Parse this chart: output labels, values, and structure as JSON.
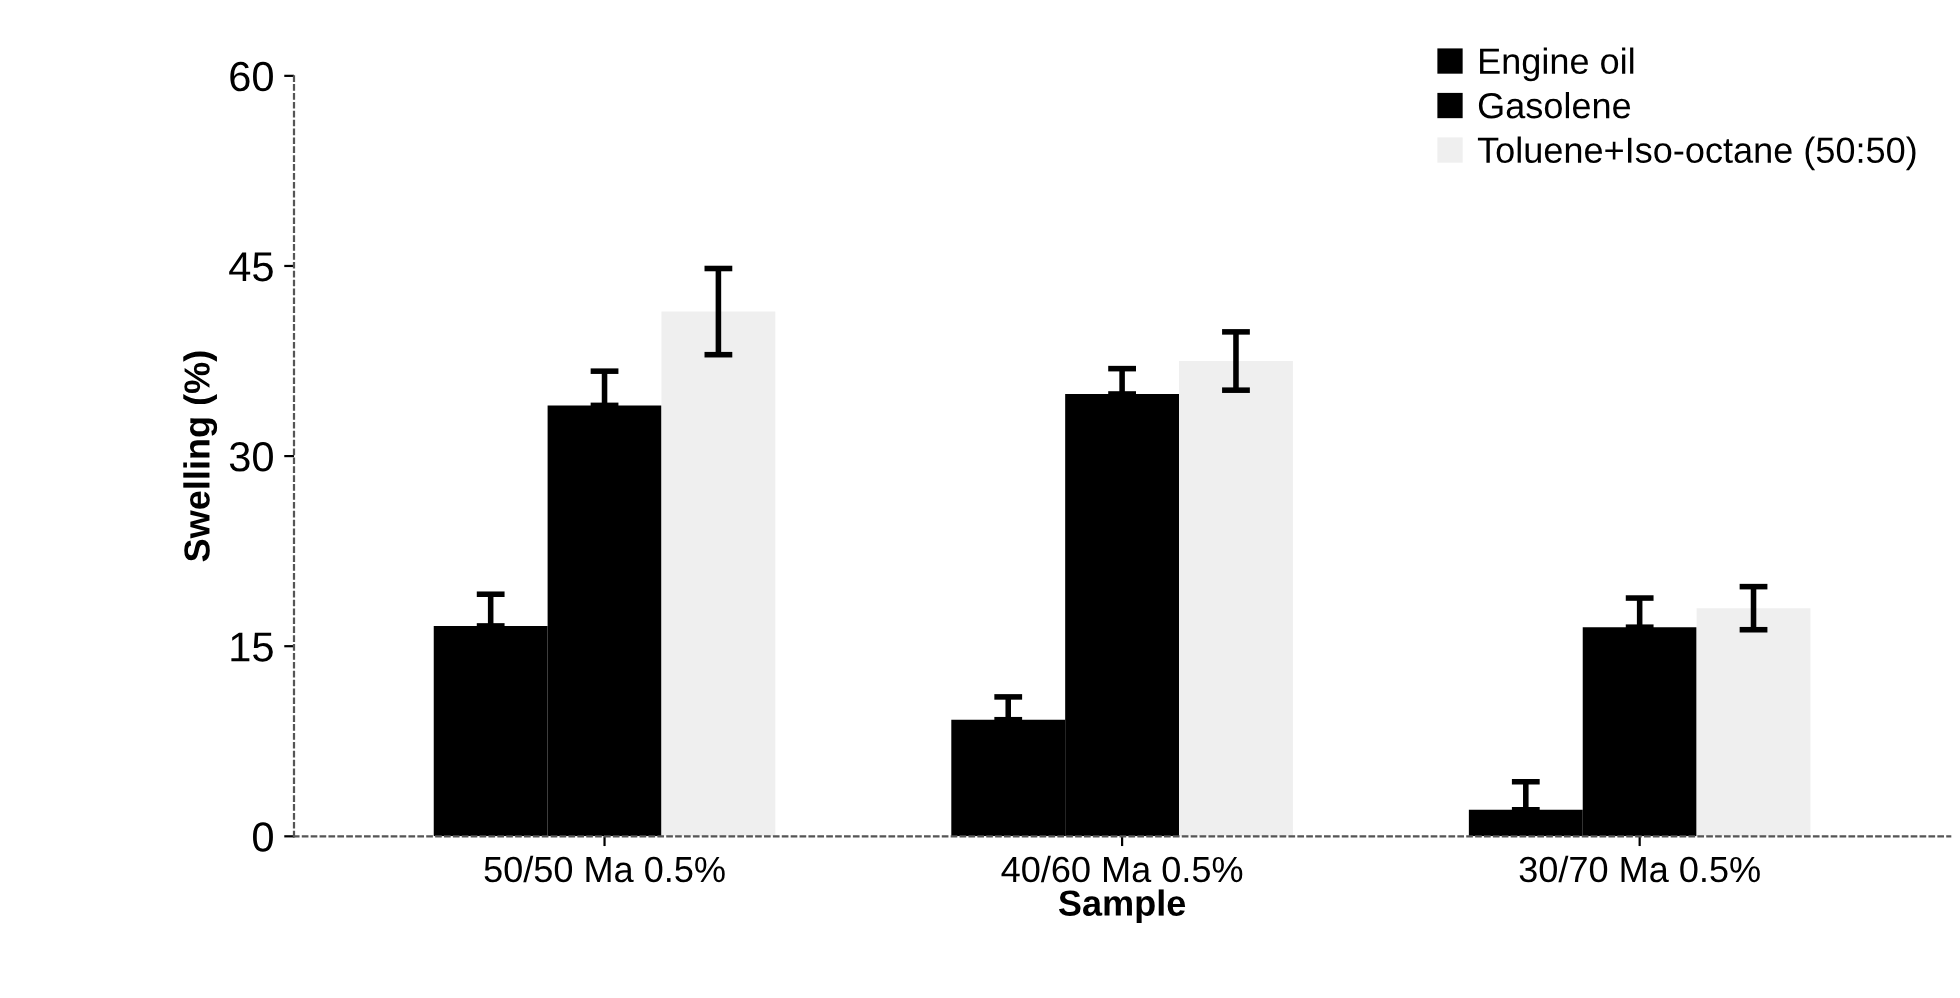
{
  "chart_data": {
    "type": "bar",
    "xlabel": "Sample",
    "ylabel": "Swelling (%)",
    "categories": [
      "50/50 Ma 0.5%",
      "40/60 Ma 0.5%",
      "30/70 Ma 0.5%"
    ],
    "series": [
      {
        "name": "Engine oil",
        "color": "#000000",
        "values": [
          16.6,
          9.2,
          2.1
        ],
        "errors": [
          [
            16.6,
            19.1
          ],
          [
            9.2,
            11.0
          ],
          [
            2.1,
            4.3
          ]
        ]
      },
      {
        "name": "Gasolene",
        "color": "#000000",
        "values": [
          34.0,
          34.9,
          16.5
        ],
        "errors": [
          [
            34.0,
            36.7
          ],
          [
            34.9,
            36.9
          ],
          [
            16.5,
            18.8
          ]
        ]
      },
      {
        "name": "Toluene+Iso-octane (50:50)",
        "color": "#efefef",
        "values": [
          41.4,
          37.5,
          18.0
        ],
        "errors": [
          3.4,
          2.3,
          1.7
        ]
      }
    ],
    "ylim": [
      0,
      60
    ],
    "yticks": [
      0,
      15,
      30,
      45,
      60
    ],
    "grid": false,
    "legend": "top right"
  }
}
